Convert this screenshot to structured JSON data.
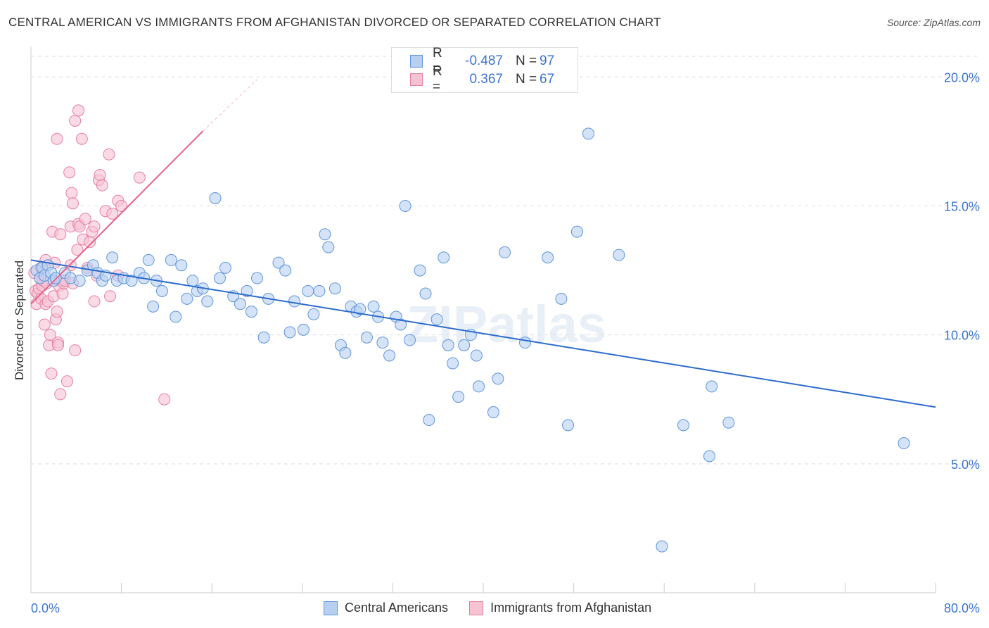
{
  "title": "CENTRAL AMERICAN VS IMMIGRANTS FROM AFGHANISTAN DIVORCED OR SEPARATED CORRELATION CHART",
  "source": "Source: ZipAtlas.com",
  "legend": {
    "r_label": "R =",
    "n_label": "N =",
    "rows": [
      {
        "name": "Central Americans",
        "r": "-0.487",
        "n": "97"
      },
      {
        "name": "Immigrants from Afghanistan",
        "r": "0.367",
        "n": "67"
      }
    ]
  },
  "colors": {
    "blue_fill": "#b7d0f2",
    "blue_stroke": "#5f95dc",
    "blue_line": "#2c6ccc",
    "pink_fill": "#f7c3d3",
    "pink_stroke": "#e87fa0",
    "pink_line": "#e8608c",
    "tick_label": "#3a74d0",
    "grid": "#dddddd"
  },
  "chart_data": {
    "type": "scatter",
    "title": "CENTRAL AMERICAN VS IMMIGRANTS FROM AFGHANISTAN DIVORCED OR SEPARATED CORRELATION CHART",
    "xlabel": "",
    "ylabel": "Divorced or Separated",
    "xlim": [
      0,
      80
    ],
    "ylim": [
      0,
      20.8
    ],
    "x_tick_labels": [
      "0.0%",
      "80.0%"
    ],
    "y_ticks": [
      5,
      10,
      15,
      20
    ],
    "y_tick_labels": [
      "5.0%",
      "10.0%",
      "15.0%",
      "20.0%"
    ],
    "watermark": "ZIPatlas",
    "series": [
      {
        "name": "Central Americans",
        "trend": {
          "x": [
            0,
            80
          ],
          "y": [
            12.9,
            7.2
          ]
        },
        "points": [
          [
            0.5,
            12.5
          ],
          [
            0.8,
            12.2
          ],
          [
            1.0,
            12.6
          ],
          [
            1.2,
            12.3
          ],
          [
            1.5,
            12.7
          ],
          [
            1.8,
            12.4
          ],
          [
            2.0,
            12.1
          ],
          [
            2.2,
            12.2
          ],
          [
            3.0,
            12.4
          ],
          [
            3.5,
            12.2
          ],
          [
            4.3,
            12.1
          ],
          [
            5.0,
            12.5
          ],
          [
            5.5,
            12.7
          ],
          [
            5.9,
            12.4
          ],
          [
            6.3,
            12.1
          ],
          [
            6.6,
            12.3
          ],
          [
            7.2,
            13.0
          ],
          [
            7.6,
            12.1
          ],
          [
            8.2,
            12.2
          ],
          [
            8.9,
            12.1
          ],
          [
            9.6,
            12.4
          ],
          [
            10.0,
            12.2
          ],
          [
            10.4,
            12.9
          ],
          [
            10.8,
            11.1
          ],
          [
            11.1,
            12.1
          ],
          [
            11.6,
            11.7
          ],
          [
            12.4,
            12.9
          ],
          [
            12.8,
            10.7
          ],
          [
            13.3,
            12.7
          ],
          [
            13.8,
            11.4
          ],
          [
            14.3,
            12.1
          ],
          [
            14.7,
            11.7
          ],
          [
            15.2,
            11.8
          ],
          [
            15.6,
            11.3
          ],
          [
            16.3,
            15.3
          ],
          [
            16.7,
            12.2
          ],
          [
            17.2,
            12.6
          ],
          [
            17.9,
            11.5
          ],
          [
            18.5,
            11.2
          ],
          [
            19.1,
            11.7
          ],
          [
            19.5,
            10.9
          ],
          [
            20.0,
            12.2
          ],
          [
            20.6,
            9.9
          ],
          [
            21.0,
            11.4
          ],
          [
            21.9,
            12.8
          ],
          [
            22.5,
            12.5
          ],
          [
            22.9,
            10.1
          ],
          [
            23.3,
            11.3
          ],
          [
            24.1,
            10.2
          ],
          [
            24.5,
            11.7
          ],
          [
            25.0,
            10.8
          ],
          [
            25.5,
            11.7
          ],
          [
            26.0,
            13.9
          ],
          [
            26.3,
            13.4
          ],
          [
            26.9,
            11.8
          ],
          [
            27.4,
            9.6
          ],
          [
            27.8,
            9.3
          ],
          [
            28.3,
            11.1
          ],
          [
            28.8,
            10.9
          ],
          [
            29.1,
            11.0
          ],
          [
            29.7,
            9.9
          ],
          [
            30.3,
            11.1
          ],
          [
            30.7,
            10.7
          ],
          [
            31.1,
            9.7
          ],
          [
            31.7,
            9.2
          ],
          [
            32.3,
            10.7
          ],
          [
            32.7,
            10.4
          ],
          [
            33.1,
            15.0
          ],
          [
            33.5,
            9.8
          ],
          [
            34.4,
            12.5
          ],
          [
            34.9,
            11.6
          ],
          [
            35.2,
            6.7
          ],
          [
            35.9,
            10.6
          ],
          [
            36.5,
            13.0
          ],
          [
            36.9,
            9.6
          ],
          [
            37.3,
            8.9
          ],
          [
            37.8,
            7.6
          ],
          [
            38.3,
            9.6
          ],
          [
            38.9,
            10.0
          ],
          [
            39.4,
            9.2
          ],
          [
            39.6,
            8.0
          ],
          [
            40.9,
            7.0
          ],
          [
            41.3,
            8.3
          ],
          [
            41.9,
            13.2
          ],
          [
            43.7,
            9.7
          ],
          [
            45.7,
            13.0
          ],
          [
            46.9,
            11.4
          ],
          [
            47.5,
            6.5
          ],
          [
            48.3,
            14.0
          ],
          [
            49.3,
            17.8
          ],
          [
            52.0,
            13.1
          ],
          [
            55.8,
            1.8
          ],
          [
            57.7,
            6.5
          ],
          [
            60.0,
            5.3
          ],
          [
            60.2,
            8.0
          ],
          [
            61.7,
            6.6
          ],
          [
            77.2,
            5.8
          ]
        ]
      },
      {
        "name": "Immigrants from Afghanistan",
        "trend": {
          "x": [
            0,
            15.2
          ],
          "y": [
            11.2,
            17.9
          ]
        },
        "trend_dashed": {
          "x": [
            15.2,
            20.0
          ],
          "y": [
            17.9,
            19.9
          ]
        },
        "points": [
          [
            0.3,
            12.4
          ],
          [
            0.4,
            11.7
          ],
          [
            0.5,
            11.2
          ],
          [
            0.6,
            11.6
          ],
          [
            0.7,
            11.8
          ],
          [
            0.8,
            12.2
          ],
          [
            0.9,
            11.4
          ],
          [
            1.0,
            11.9
          ],
          [
            1.1,
            12.1
          ],
          [
            1.2,
            10.4
          ],
          [
            1.3,
            11.2
          ],
          [
            1.4,
            12.0
          ],
          [
            1.5,
            11.3
          ],
          [
            1.6,
            9.6
          ],
          [
            1.7,
            10.0
          ],
          [
            1.8,
            8.5
          ],
          [
            1.9,
            14.0
          ],
          [
            2.0,
            11.5
          ],
          [
            2.1,
            12.8
          ],
          [
            2.2,
            10.6
          ],
          [
            2.3,
            10.9
          ],
          [
            2.4,
            9.7
          ],
          [
            2.5,
            11.9
          ],
          [
            2.6,
            7.7
          ],
          [
            2.7,
            12.1
          ],
          [
            2.8,
            11.6
          ],
          [
            2.9,
            12.0
          ],
          [
            3.0,
            12.1
          ],
          [
            3.2,
            8.2
          ],
          [
            3.4,
            16.3
          ],
          [
            3.5,
            14.2
          ],
          [
            3.6,
            15.5
          ],
          [
            3.7,
            12.0
          ],
          [
            3.9,
            9.4
          ],
          [
            4.1,
            13.3
          ],
          [
            4.2,
            14.3
          ],
          [
            4.3,
            14.2
          ],
          [
            4.6,
            13.7
          ],
          [
            4.8,
            14.5
          ],
          [
            5.0,
            12.6
          ],
          [
            5.2,
            13.6
          ],
          [
            5.4,
            14.0
          ],
          [
            5.6,
            14.2
          ],
          [
            5.8,
            12.3
          ],
          [
            6.0,
            16.0
          ],
          [
            6.1,
            16.2
          ],
          [
            6.3,
            15.8
          ],
          [
            6.6,
            14.8
          ],
          [
            6.9,
            17.0
          ],
          [
            7.2,
            14.7
          ],
          [
            7.7,
            15.2
          ],
          [
            8.0,
            15.0
          ],
          [
            0.9,
            12.6
          ],
          [
            1.3,
            12.9
          ],
          [
            2.3,
            17.6
          ],
          [
            2.4,
            9.6
          ],
          [
            2.6,
            13.9
          ],
          [
            3.5,
            12.7
          ],
          [
            3.7,
            15.1
          ],
          [
            3.9,
            18.3
          ],
          [
            4.2,
            18.7
          ],
          [
            4.5,
            17.6
          ],
          [
            5.6,
            11.3
          ],
          [
            7.0,
            11.5
          ],
          [
            7.7,
            12.3
          ],
          [
            9.6,
            16.1
          ],
          [
            11.8,
            7.5
          ]
        ]
      }
    ]
  }
}
